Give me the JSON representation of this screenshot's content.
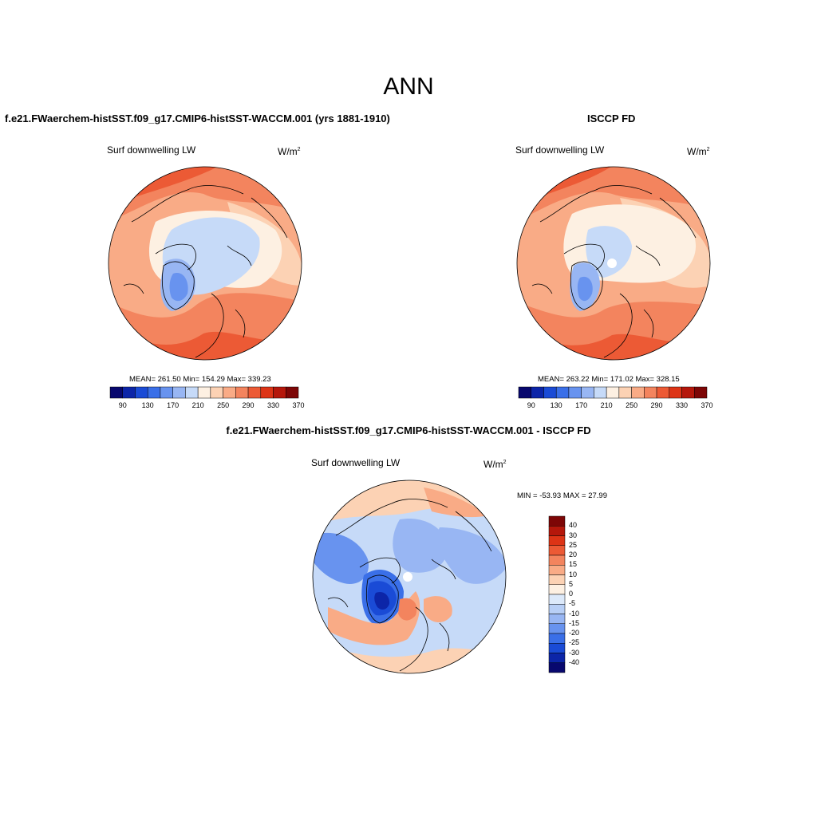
{
  "title": "ANN",
  "panels": [
    {
      "id": "model",
      "title": "f.e21.FWaerchem-histSST.f09_g17.CMIP6-histSST-WACCM.001 (yrs 1881-1910)",
      "variable": "Surf downwelling LW",
      "units_base": "W/m",
      "units_exp": "2",
      "stats": "MEAN= 261.50  Min= 154.29  Max= 339.23"
    },
    {
      "id": "obs",
      "title": "ISCCP FD",
      "variable": "Surf downwelling LW",
      "units_base": "W/m",
      "units_exp": "2",
      "stats": "MEAN= 263.22  Min= 171.02  Max= 328.15"
    },
    {
      "id": "diff",
      "title": "f.e21.FWaerchem-histSST.f09_g17.CMIP6-histSST-WACCM.001 - ISCCP FD",
      "variable": "Surf downwelling LW",
      "units_base": "W/m",
      "units_exp": "2",
      "stats": "MIN = -53.93 MAX =  27.99"
    }
  ],
  "colorbar_abs": {
    "colors": [
      "#08086e",
      "#0c25a8",
      "#1a4bd6",
      "#3a6fe8",
      "#6893ef",
      "#98b6f3",
      "#c6daf8",
      "#fdf0e2",
      "#fcd2b4",
      "#f9ab86",
      "#f3845e",
      "#ec5a35",
      "#dd3416",
      "#b5170b",
      "#7d0606"
    ],
    "ticks": [
      "90",
      "130",
      "170",
      "210",
      "250",
      "290",
      "330",
      "370"
    ]
  },
  "colorbar_diff": {
    "colors": [
      "#7d0606",
      "#b5170b",
      "#dd3416",
      "#ec5a35",
      "#f3845e",
      "#f9ab86",
      "#fcd2b4",
      "#fdf0e2",
      "#dce9fa",
      "#b8cff6",
      "#98b6f3",
      "#6893ef",
      "#3a6fe8",
      "#1a4bd6",
      "#0c25a8",
      "#08086e"
    ],
    "ticks": [
      "40",
      "30",
      "25",
      "20",
      "15",
      "10",
      "5",
      "0",
      "-5",
      "-10",
      "-15",
      "-20",
      "-25",
      "-30",
      "-40"
    ]
  },
  "map_colors": {
    "warm1": "#f3845e",
    "warm2": "#ec5a35",
    "warm3": "#f9ab86",
    "warm4": "#fcd2b4",
    "warm5": "#fdf0e2",
    "cold1": "#c6daf8",
    "cold2": "#98b6f3",
    "cold3": "#6893ef",
    "cold4": "#3a6fe8",
    "cold5": "#1a4bd6",
    "cold6": "#0c25a8"
  }
}
